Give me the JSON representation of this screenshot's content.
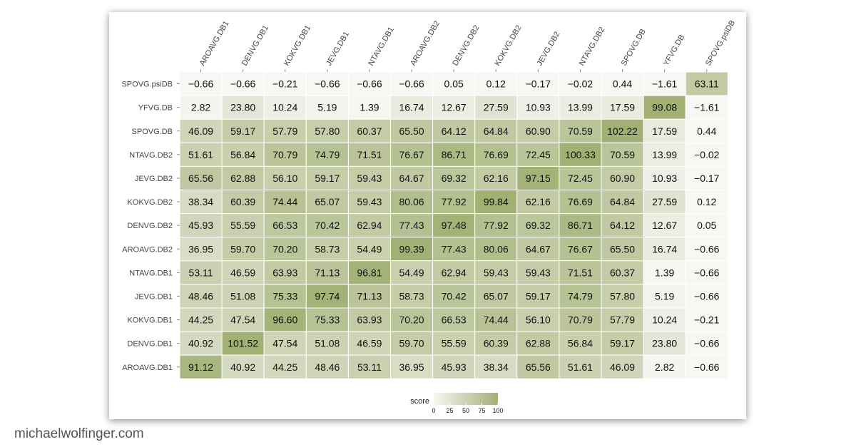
{
  "footer": {
    "site": "michaelwolfinger.com"
  },
  "chart_data": {
    "type": "heatmap",
    "x_labels": [
      "AROAVG.DB1",
      "DENVG.DB1",
      "KOKVG.DB1",
      "JEVG.DB1",
      "NTAVG.DB1",
      "AROAVG.DB2",
      "DENVG.DB2",
      "KOKVG.DB2",
      "JEVG.DB2",
      "NTAVG.DB2",
      "SPOVG.DB",
      "YFVG.DB",
      "SPOVG.psiDB"
    ],
    "y_labels": [
      "SPOVG.psiDB",
      "YFVG.DB",
      "SPOVG.DB",
      "NTAVG.DB2",
      "JEVG.DB2",
      "KOKVG.DB2",
      "DENVG.DB2",
      "AROAVG.DB2",
      "NTAVG.DB1",
      "JEVG.DB1",
      "KOKVG.DB1",
      "DENVG.DB1",
      "AROAVG.DB1"
    ],
    "values": [
      [
        -0.66,
        -0.66,
        -0.21,
        -0.66,
        -0.66,
        -0.66,
        0.05,
        0.12,
        -0.17,
        -0.02,
        0.44,
        -1.61,
        63.11
      ],
      [
        2.82,
        23.8,
        10.24,
        5.19,
        1.39,
        16.74,
        12.67,
        27.59,
        10.93,
        13.99,
        17.59,
        99.08,
        -1.61
      ],
      [
        46.09,
        59.17,
        57.79,
        57.8,
        60.37,
        65.5,
        64.12,
        64.84,
        60.9,
        70.59,
        102.22,
        17.59,
        0.44
      ],
      [
        51.61,
        56.84,
        70.79,
        74.79,
        71.51,
        76.67,
        86.71,
        76.69,
        72.45,
        100.33,
        70.59,
        13.99,
        -0.02
      ],
      [
        65.56,
        62.88,
        56.1,
        59.17,
        59.43,
        64.67,
        69.32,
        62.16,
        97.15,
        72.45,
        60.9,
        10.93,
        -0.17
      ],
      [
        38.34,
        60.39,
        74.44,
        65.07,
        59.43,
        80.06,
        77.92,
        99.84,
        62.16,
        76.69,
        64.84,
        27.59,
        0.12
      ],
      [
        45.93,
        55.59,
        66.53,
        70.42,
        62.94,
        77.43,
        97.48,
        77.92,
        69.32,
        86.71,
        64.12,
        12.67,
        0.05
      ],
      [
        36.95,
        59.7,
        70.2,
        58.73,
        54.49,
        99.39,
        77.43,
        80.06,
        64.67,
        76.67,
        65.5,
        16.74,
        -0.66
      ],
      [
        53.11,
        46.59,
        63.93,
        71.13,
        96.81,
        54.49,
        62.94,
        59.43,
        59.43,
        71.51,
        60.37,
        1.39,
        -0.66
      ],
      [
        48.46,
        51.08,
        75.33,
        97.74,
        71.13,
        58.73,
        70.42,
        65.07,
        59.17,
        74.79,
        57.8,
        5.19,
        -0.66
      ],
      [
        44.25,
        47.54,
        96.6,
        75.33,
        63.93,
        70.2,
        66.53,
        74.44,
        56.1,
        70.79,
        57.79,
        10.24,
        -0.21
      ],
      [
        40.92,
        101.52,
        47.54,
        51.08,
        46.59,
        59.7,
        55.59,
        60.39,
        62.88,
        56.84,
        59.17,
        23.8,
        -0.66
      ],
      [
        91.12,
        40.92,
        44.25,
        48.46,
        53.11,
        36.95,
        45.93,
        38.34,
        65.56,
        51.61,
        46.09,
        2.82,
        -0.66
      ]
    ],
    "display": [
      [
        "−0.66",
        "−0.66",
        "−0.21",
        "−0.66",
        "−0.66",
        "−0.66",
        "0.05",
        "0.12",
        "−0.17",
        "−0.02",
        "0.44",
        "−1.61",
        "63.11"
      ],
      [
        "2.82",
        "23.80",
        "10.24",
        "5.19",
        "1.39",
        "16.74",
        "12.67",
        "27.59",
        "10.93",
        "13.99",
        "17.59",
        "99.08",
        "−1.61"
      ],
      [
        "46.09",
        "59.17",
        "57.79",
        "57.80",
        "60.37",
        "65.50",
        "64.12",
        "64.84",
        "60.90",
        "70.59",
        "102.22",
        "17.59",
        "0.44"
      ],
      [
        "51.61",
        "56.84",
        "70.79",
        "74.79",
        "71.51",
        "76.67",
        "86.71",
        "76.69",
        "72.45",
        "100.33",
        "70.59",
        "13.99",
        "−0.02"
      ],
      [
        "65.56",
        "62.88",
        "56.10",
        "59.17",
        "59.43",
        "64.67",
        "69.32",
        "62.16",
        "97.15",
        "72.45",
        "60.90",
        "10.93",
        "−0.17"
      ],
      [
        "38.34",
        "60.39",
        "74.44",
        "65.07",
        "59.43",
        "80.06",
        "77.92",
        "99.84",
        "62.16",
        "76.69",
        "64.84",
        "27.59",
        "0.12"
      ],
      [
        "45.93",
        "55.59",
        "66.53",
        "70.42",
        "62.94",
        "77.43",
        "97.48",
        "77.92",
        "69.32",
        "86.71",
        "64.12",
        "12.67",
        "0.05"
      ],
      [
        "36.95",
        "59.70",
        "70.20",
        "58.73",
        "54.49",
        "99.39",
        "77.43",
        "80.06",
        "64.67",
        "76.67",
        "65.50",
        "16.74",
        "−0.66"
      ],
      [
        "53.11",
        "46.59",
        "63.93",
        "71.13",
        "96.81",
        "54.49",
        "62.94",
        "59.43",
        "59.43",
        "71.51",
        "60.37",
        "1.39",
        "−0.66"
      ],
      [
        "48.46",
        "51.08",
        "75.33",
        "97.74",
        "71.13",
        "58.73",
        "70.42",
        "65.07",
        "59.17",
        "74.79",
        "57.80",
        "5.19",
        "−0.66"
      ],
      [
        "44.25",
        "47.54",
        "96.60",
        "75.33",
        "63.93",
        "70.20",
        "66.53",
        "74.44",
        "56.10",
        "70.79",
        "57.79",
        "10.24",
        "−0.21"
      ],
      [
        "40.92",
        "101.52",
        "47.54",
        "51.08",
        "46.59",
        "59.70",
        "55.59",
        "60.39",
        "62.88",
        "56.84",
        "59.17",
        "23.80",
        "−0.66"
      ],
      [
        "91.12",
        "40.92",
        "44.25",
        "48.46",
        "53.11",
        "36.95",
        "45.93",
        "38.34",
        "65.56",
        "51.61",
        "46.09",
        "2.82",
        "−0.66"
      ]
    ],
    "legend": {
      "title": "score",
      "ticks": [
        0,
        25,
        50,
        75,
        100
      ],
      "range": [
        0,
        100
      ],
      "placement": "bottom-center"
    },
    "colors": {
      "low": "#f7f7f4",
      "high": "#a2b074",
      "text": "#111111",
      "label": "#444444"
    },
    "grid": false
  }
}
